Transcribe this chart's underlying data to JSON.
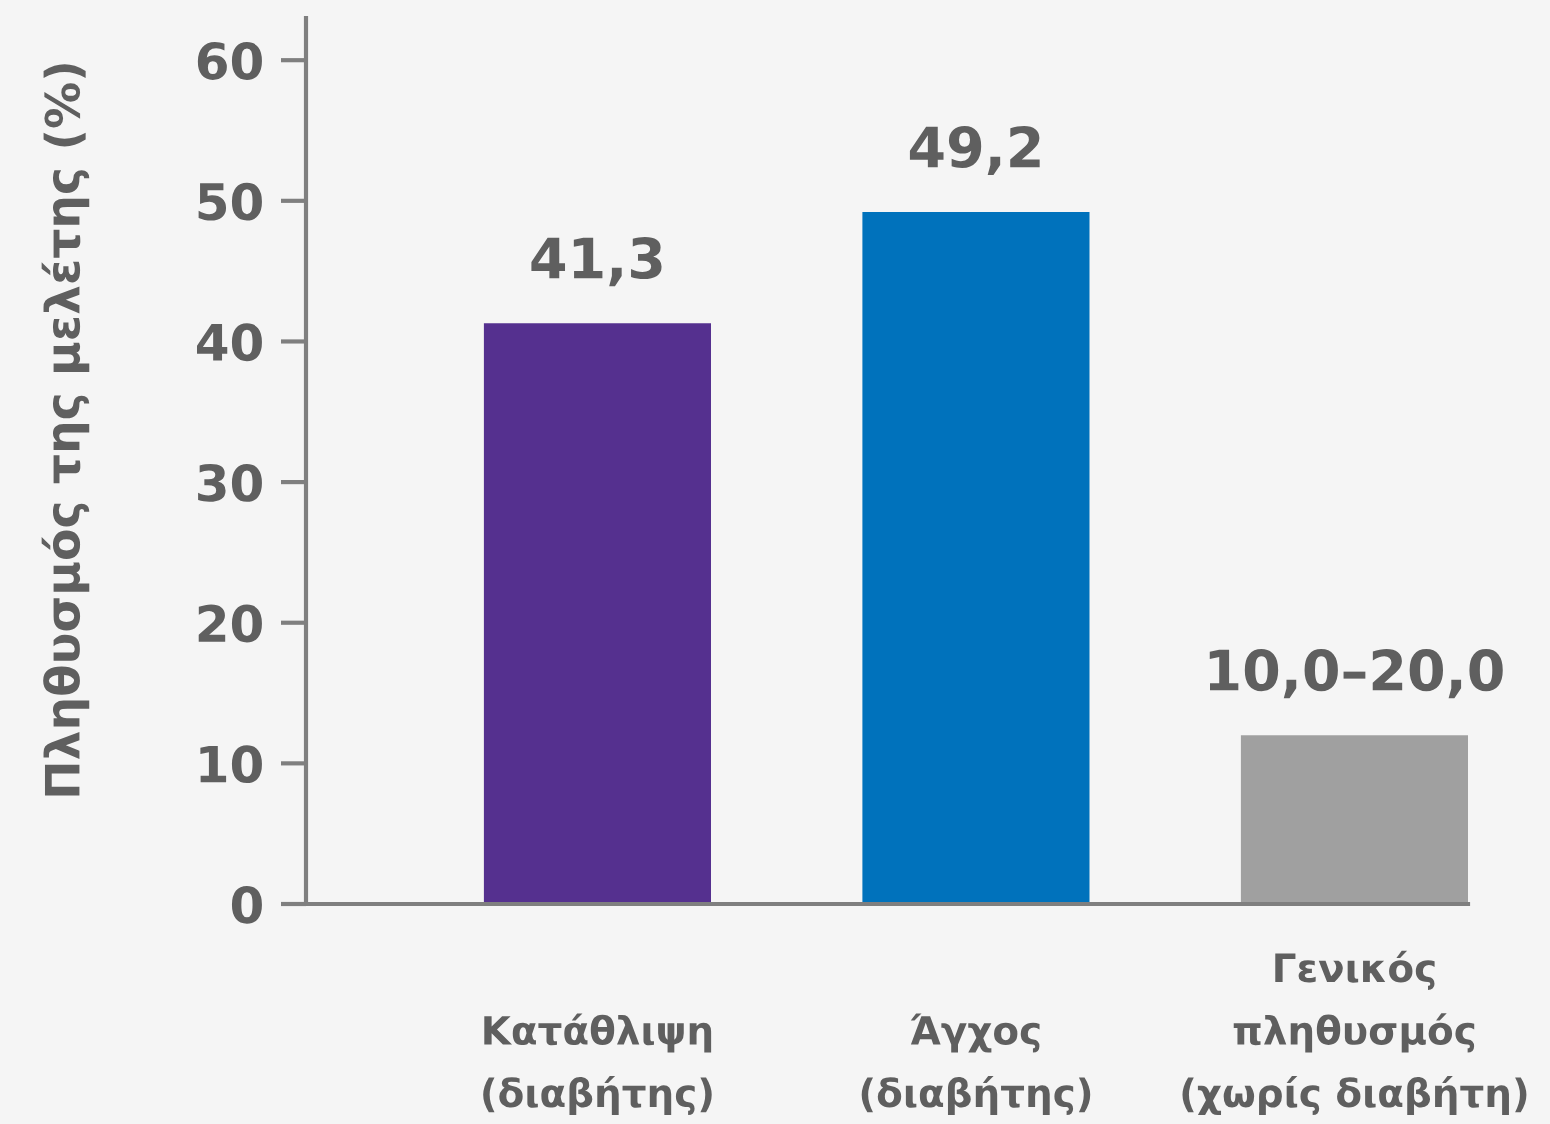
{
  "chart_data": {
    "type": "bar",
    "ylabel": "Πληθυσμός της μελέτης (%)",
    "categories": [
      "Κατάθλιψη\n(διαβήτης)",
      "Άγχος\n(διαβήτης)",
      "Γενικός\nπληθυσμός\n(χωρίς διαβήτη)"
    ],
    "values": [
      41.3,
      49.2,
      12
    ],
    "colors": [
      "#55308f",
      "#0072bc",
      "#a0a0a0"
    ],
    "value_labels": [
      "41,3",
      "49,2",
      "10,0–20,0"
    ],
    "ylim": [
      0,
      63
    ],
    "yticks": [
      0,
      10,
      20,
      30,
      40,
      50,
      60
    ]
  }
}
